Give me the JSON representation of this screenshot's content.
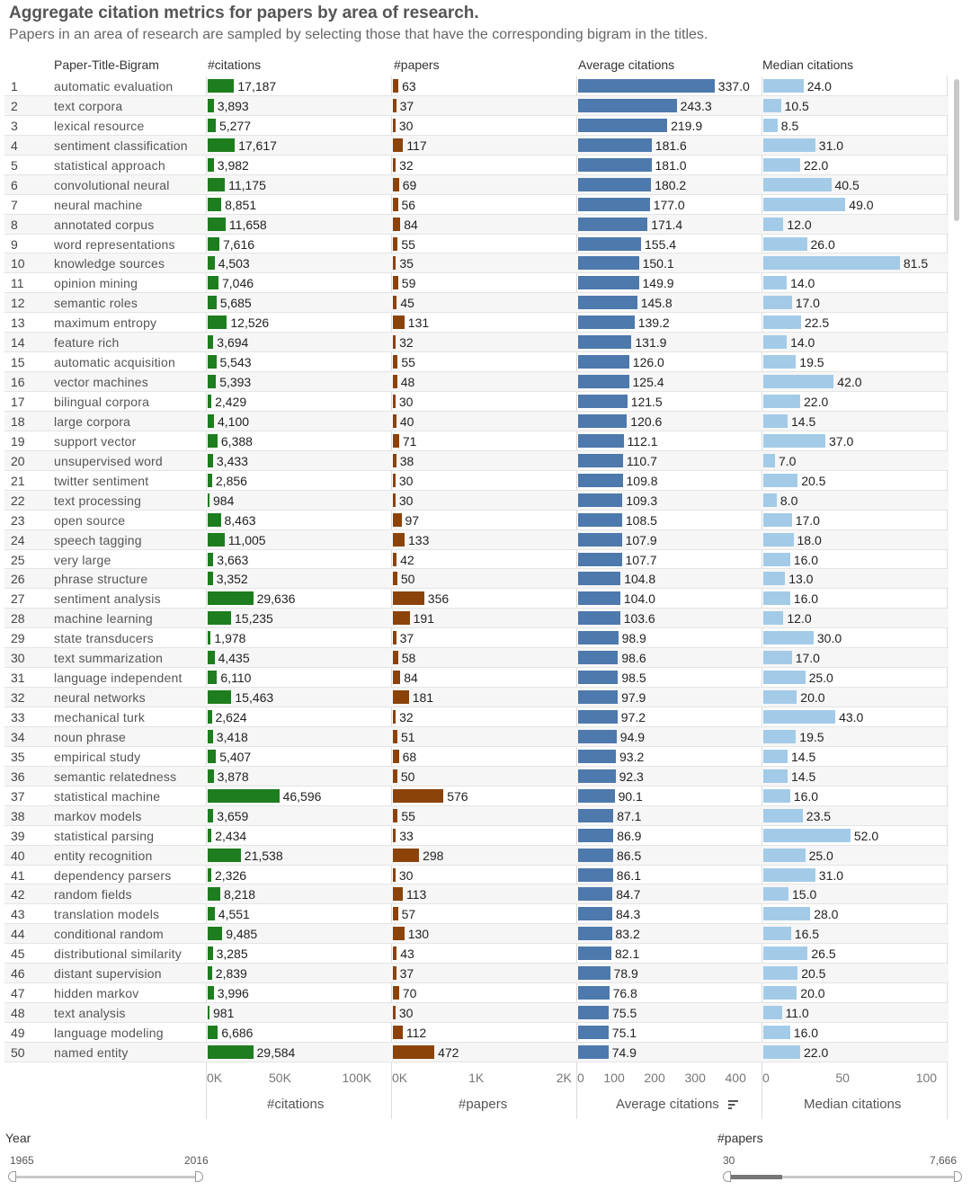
{
  "title": "Aggregate citation metrics for papers by area of research.",
  "subtitle": "Papers in an area of research are sampled by selecting those that have the corresponding  bigram in the titles.",
  "colors": {
    "citations": "#1e7d1e",
    "papers": "#8b4309",
    "avg": "#4d79ad",
    "median": "#a3cbe8"
  },
  "chart_data": {
    "type": "bar",
    "columns": [
      "Paper-Title-Bigram",
      "#citations",
      "#papers",
      "Average citations",
      "Median citations"
    ],
    "rows": [
      {
        "rank": "1",
        "bigram": "automatic evaluation",
        "citations": 17187,
        "citations_label": "17,187",
        "papers": 63,
        "papers_label": "63",
        "avg": 337.0,
        "avg_label": "337.0",
        "median": 24.0,
        "median_label": "24.0"
      },
      {
        "rank": "2",
        "bigram": "text corpora",
        "citations": 3893,
        "citations_label": "3,893",
        "papers": 37,
        "papers_label": "37",
        "avg": 243.3,
        "avg_label": "243.3",
        "median": 10.5,
        "median_label": "10.5"
      },
      {
        "rank": "3",
        "bigram": "lexical resource",
        "citations": 5277,
        "citations_label": "5,277",
        "papers": 30,
        "papers_label": "30",
        "avg": 219.9,
        "avg_label": "219.9",
        "median": 8.5,
        "median_label": "8.5"
      },
      {
        "rank": "4",
        "bigram": "sentiment classification",
        "citations": 17617,
        "citations_label": "17,617",
        "papers": 117,
        "papers_label": "117",
        "avg": 181.6,
        "avg_label": "181.6",
        "median": 31.0,
        "median_label": "31.0"
      },
      {
        "rank": "5",
        "bigram": "statistical approach",
        "citations": 3982,
        "citations_label": "3,982",
        "papers": 32,
        "papers_label": "32",
        "avg": 181.0,
        "avg_label": "181.0",
        "median": 22.0,
        "median_label": "22.0"
      },
      {
        "rank": "6",
        "bigram": "convolutional neural",
        "citations": 11175,
        "citations_label": "11,175",
        "papers": 69,
        "papers_label": "69",
        "avg": 180.2,
        "avg_label": "180.2",
        "median": 40.5,
        "median_label": "40.5"
      },
      {
        "rank": "7",
        "bigram": "neural machine",
        "citations": 8851,
        "citations_label": "8,851",
        "papers": 56,
        "papers_label": "56",
        "avg": 177.0,
        "avg_label": "177.0",
        "median": 49.0,
        "median_label": "49.0"
      },
      {
        "rank": "8",
        "bigram": "annotated corpus",
        "citations": 11658,
        "citations_label": "11,658",
        "papers": 84,
        "papers_label": "84",
        "avg": 171.4,
        "avg_label": "171.4",
        "median": 12.0,
        "median_label": "12.0"
      },
      {
        "rank": "9",
        "bigram": "word representations",
        "citations": 7616,
        "citations_label": "7,616",
        "papers": 55,
        "papers_label": "55",
        "avg": 155.4,
        "avg_label": "155.4",
        "median": 26.0,
        "median_label": "26.0"
      },
      {
        "rank": "10",
        "bigram": "knowledge sources",
        "citations": 4503,
        "citations_label": "4,503",
        "papers": 35,
        "papers_label": "35",
        "avg": 150.1,
        "avg_label": "150.1",
        "median": 81.5,
        "median_label": "81.5"
      },
      {
        "rank": "11",
        "bigram": "opinion mining",
        "citations": 7046,
        "citations_label": "7,046",
        "papers": 59,
        "papers_label": "59",
        "avg": 149.9,
        "avg_label": "149.9",
        "median": 14.0,
        "median_label": "14.0"
      },
      {
        "rank": "12",
        "bigram": "semantic roles",
        "citations": 5685,
        "citations_label": "5,685",
        "papers": 45,
        "papers_label": "45",
        "avg": 145.8,
        "avg_label": "145.8",
        "median": 17.0,
        "median_label": "17.0"
      },
      {
        "rank": "13",
        "bigram": "maximum entropy",
        "citations": 12526,
        "citations_label": "12,526",
        "papers": 131,
        "papers_label": "131",
        "avg": 139.2,
        "avg_label": "139.2",
        "median": 22.5,
        "median_label": "22.5"
      },
      {
        "rank": "14",
        "bigram": "feature rich",
        "citations": 3694,
        "citations_label": "3,694",
        "papers": 32,
        "papers_label": "32",
        "avg": 131.9,
        "avg_label": "131.9",
        "median": 14.0,
        "median_label": "14.0"
      },
      {
        "rank": "15",
        "bigram": "automatic acquisition",
        "citations": 5543,
        "citations_label": "5,543",
        "papers": 55,
        "papers_label": "55",
        "avg": 126.0,
        "avg_label": "126.0",
        "median": 19.5,
        "median_label": "19.5"
      },
      {
        "rank": "16",
        "bigram": "vector machines",
        "citations": 5393,
        "citations_label": "5,393",
        "papers": 48,
        "papers_label": "48",
        "avg": 125.4,
        "avg_label": "125.4",
        "median": 42.0,
        "median_label": "42.0"
      },
      {
        "rank": "17",
        "bigram": "bilingual corpora",
        "citations": 2429,
        "citations_label": "2,429",
        "papers": 30,
        "papers_label": "30",
        "avg": 121.5,
        "avg_label": "121.5",
        "median": 22.0,
        "median_label": "22.0"
      },
      {
        "rank": "18",
        "bigram": "large corpora",
        "citations": 4100,
        "citations_label": "4,100",
        "papers": 40,
        "papers_label": "40",
        "avg": 120.6,
        "avg_label": "120.6",
        "median": 14.5,
        "median_label": "14.5"
      },
      {
        "rank": "19",
        "bigram": "support vector",
        "citations": 6388,
        "citations_label": "6,388",
        "papers": 71,
        "papers_label": "71",
        "avg": 112.1,
        "avg_label": "112.1",
        "median": 37.0,
        "median_label": "37.0"
      },
      {
        "rank": "20",
        "bigram": "unsupervised word",
        "citations": 3433,
        "citations_label": "3,433",
        "papers": 38,
        "papers_label": "38",
        "avg": 110.7,
        "avg_label": "110.7",
        "median": 7.0,
        "median_label": "7.0"
      },
      {
        "rank": "21",
        "bigram": "twitter sentiment",
        "citations": 2856,
        "citations_label": "2,856",
        "papers": 30,
        "papers_label": "30",
        "avg": 109.8,
        "avg_label": "109.8",
        "median": 20.5,
        "median_label": "20.5"
      },
      {
        "rank": "22",
        "bigram": "text processing",
        "citations": 984,
        "citations_label": "984",
        "papers": 30,
        "papers_label": "30",
        "avg": 109.3,
        "avg_label": "109.3",
        "median": 8.0,
        "median_label": "8.0"
      },
      {
        "rank": "23",
        "bigram": "open source",
        "citations": 8463,
        "citations_label": "8,463",
        "papers": 97,
        "papers_label": "97",
        "avg": 108.5,
        "avg_label": "108.5",
        "median": 17.0,
        "median_label": "17.0"
      },
      {
        "rank": "24",
        "bigram": "speech tagging",
        "citations": 11005,
        "citations_label": "11,005",
        "papers": 133,
        "papers_label": "133",
        "avg": 107.9,
        "avg_label": "107.9",
        "median": 18.0,
        "median_label": "18.0"
      },
      {
        "rank": "25",
        "bigram": "very large",
        "citations": 3663,
        "citations_label": "3,663",
        "papers": 42,
        "papers_label": "42",
        "avg": 107.7,
        "avg_label": "107.7",
        "median": 16.0,
        "median_label": "16.0"
      },
      {
        "rank": "26",
        "bigram": "phrase structure",
        "citations": 3352,
        "citations_label": "3,352",
        "papers": 50,
        "papers_label": "50",
        "avg": 104.8,
        "avg_label": "104.8",
        "median": 13.0,
        "median_label": "13.0"
      },
      {
        "rank": "27",
        "bigram": "sentiment analysis",
        "citations": 29636,
        "citations_label": "29,636",
        "papers": 356,
        "papers_label": "356",
        "avg": 104.0,
        "avg_label": "104.0",
        "median": 16.0,
        "median_label": "16.0"
      },
      {
        "rank": "28",
        "bigram": "machine learning",
        "citations": 15235,
        "citations_label": "15,235",
        "papers": 191,
        "papers_label": "191",
        "avg": 103.6,
        "avg_label": "103.6",
        "median": 12.0,
        "median_label": "12.0"
      },
      {
        "rank": "29",
        "bigram": "state transducers",
        "citations": 1978,
        "citations_label": "1,978",
        "papers": 37,
        "papers_label": "37",
        "avg": 98.9,
        "avg_label": "98.9",
        "median": 30.0,
        "median_label": "30.0"
      },
      {
        "rank": "30",
        "bigram": "text summarization",
        "citations": 4435,
        "citations_label": "4,435",
        "papers": 58,
        "papers_label": "58",
        "avg": 98.6,
        "avg_label": "98.6",
        "median": 17.0,
        "median_label": "17.0"
      },
      {
        "rank": "31",
        "bigram": "language independent",
        "citations": 6110,
        "citations_label": "6,110",
        "papers": 84,
        "papers_label": "84",
        "avg": 98.5,
        "avg_label": "98.5",
        "median": 25.0,
        "median_label": "25.0"
      },
      {
        "rank": "32",
        "bigram": "neural networks",
        "citations": 15463,
        "citations_label": "15,463",
        "papers": 181,
        "papers_label": "181",
        "avg": 97.9,
        "avg_label": "97.9",
        "median": 20.0,
        "median_label": "20.0"
      },
      {
        "rank": "33",
        "bigram": "mechanical turk",
        "citations": 2624,
        "citations_label": "2,624",
        "papers": 32,
        "papers_label": "32",
        "avg": 97.2,
        "avg_label": "97.2",
        "median": 43.0,
        "median_label": "43.0"
      },
      {
        "rank": "34",
        "bigram": "noun phrase",
        "citations": 3418,
        "citations_label": "3,418",
        "papers": 51,
        "papers_label": "51",
        "avg": 94.9,
        "avg_label": "94.9",
        "median": 19.5,
        "median_label": "19.5"
      },
      {
        "rank": "35",
        "bigram": "empirical study",
        "citations": 5407,
        "citations_label": "5,407",
        "papers": 68,
        "papers_label": "68",
        "avg": 93.2,
        "avg_label": "93.2",
        "median": 14.5,
        "median_label": "14.5"
      },
      {
        "rank": "36",
        "bigram": "semantic relatedness",
        "citations": 3878,
        "citations_label": "3,878",
        "papers": 50,
        "papers_label": "50",
        "avg": 92.3,
        "avg_label": "92.3",
        "median": 14.5,
        "median_label": "14.5"
      },
      {
        "rank": "37",
        "bigram": "statistical machine",
        "citations": 46596,
        "citations_label": "46,596",
        "papers": 576,
        "papers_label": "576",
        "avg": 90.1,
        "avg_label": "90.1",
        "median": 16.0,
        "median_label": "16.0"
      },
      {
        "rank": "38",
        "bigram": "markov models",
        "citations": 3659,
        "citations_label": "3,659",
        "papers": 55,
        "papers_label": "55",
        "avg": 87.1,
        "avg_label": "87.1",
        "median": 23.5,
        "median_label": "23.5"
      },
      {
        "rank": "39",
        "bigram": "statistical parsing",
        "citations": 2434,
        "citations_label": "2,434",
        "papers": 33,
        "papers_label": "33",
        "avg": 86.9,
        "avg_label": "86.9",
        "median": 52.0,
        "median_label": "52.0"
      },
      {
        "rank": "40",
        "bigram": "entity recognition",
        "citations": 21538,
        "citations_label": "21,538",
        "papers": 298,
        "papers_label": "298",
        "avg": 86.5,
        "avg_label": "86.5",
        "median": 25.0,
        "median_label": "25.0"
      },
      {
        "rank": "41",
        "bigram": "dependency parsers",
        "citations": 2326,
        "citations_label": "2,326",
        "papers": 30,
        "papers_label": "30",
        "avg": 86.1,
        "avg_label": "86.1",
        "median": 31.0,
        "median_label": "31.0"
      },
      {
        "rank": "42",
        "bigram": "random fields",
        "citations": 8218,
        "citations_label": "8,218",
        "papers": 113,
        "papers_label": "113",
        "avg": 84.7,
        "avg_label": "84.7",
        "median": 15.0,
        "median_label": "15.0"
      },
      {
        "rank": "43",
        "bigram": "translation models",
        "citations": 4551,
        "citations_label": "4,551",
        "papers": 57,
        "papers_label": "57",
        "avg": 84.3,
        "avg_label": "84.3",
        "median": 28.0,
        "median_label": "28.0"
      },
      {
        "rank": "44",
        "bigram": "conditional random",
        "citations": 9485,
        "citations_label": "9,485",
        "papers": 130,
        "papers_label": "130",
        "avg": 83.2,
        "avg_label": "83.2",
        "median": 16.5,
        "median_label": "16.5"
      },
      {
        "rank": "45",
        "bigram": "distributional similarity",
        "citations": 3285,
        "citations_label": "3,285",
        "papers": 43,
        "papers_label": "43",
        "avg": 82.1,
        "avg_label": "82.1",
        "median": 26.5,
        "median_label": "26.5"
      },
      {
        "rank": "46",
        "bigram": "distant supervision",
        "citations": 2839,
        "citations_label": "2,839",
        "papers": 37,
        "papers_label": "37",
        "avg": 78.9,
        "avg_label": "78.9",
        "median": 20.5,
        "median_label": "20.5"
      },
      {
        "rank": "47",
        "bigram": "hidden markov",
        "citations": 3996,
        "citations_label": "3,996",
        "papers": 70,
        "papers_label": "70",
        "avg": 76.8,
        "avg_label": "76.8",
        "median": 20.0,
        "median_label": "20.0"
      },
      {
        "rank": "48",
        "bigram": "text analysis",
        "citations": 981,
        "citations_label": "981",
        "papers": 30,
        "papers_label": "30",
        "avg": 75.5,
        "avg_label": "75.5",
        "median": 11.0,
        "median_label": "11.0"
      },
      {
        "rank": "49",
        "bigram": "language modeling",
        "citations": 6686,
        "citations_label": "6,686",
        "papers": 112,
        "papers_label": "112",
        "avg": 75.1,
        "avg_label": "75.1",
        "median": 16.0,
        "median_label": "16.0"
      },
      {
        "rank": "50",
        "bigram": "named entity",
        "citations": 29584,
        "citations_label": "29,584",
        "papers": 472,
        "papers_label": "472",
        "avg": 74.9,
        "avg_label": "74.9",
        "median": 22.0,
        "median_label": "22.0"
      }
    ],
    "axes": {
      "citations": {
        "title": "#citations",
        "ticks": [
          "0K",
          "50K",
          "100K"
        ],
        "range": [
          0,
          120000
        ]
      },
      "papers": {
        "title": "#papers",
        "ticks": [
          "0K",
          "1K",
          "2K"
        ],
        "range": [
          0,
          2100
        ]
      },
      "avg": {
        "title": "Average citations",
        "ticks": [
          "0",
          "100",
          "200",
          "300",
          "400"
        ],
        "range": [
          0,
          455
        ]
      },
      "median": {
        "title": "Median citations",
        "ticks": [
          "0",
          "50",
          "100"
        ],
        "range": [
          0,
          110
        ]
      }
    }
  },
  "filters": {
    "year": {
      "label": "Year",
      "min": "1965",
      "max": "2016"
    },
    "papers": {
      "label": "#papers",
      "min": "30",
      "max": "7,666",
      "sel_low": 0,
      "sel_high": 0.23
    }
  }
}
